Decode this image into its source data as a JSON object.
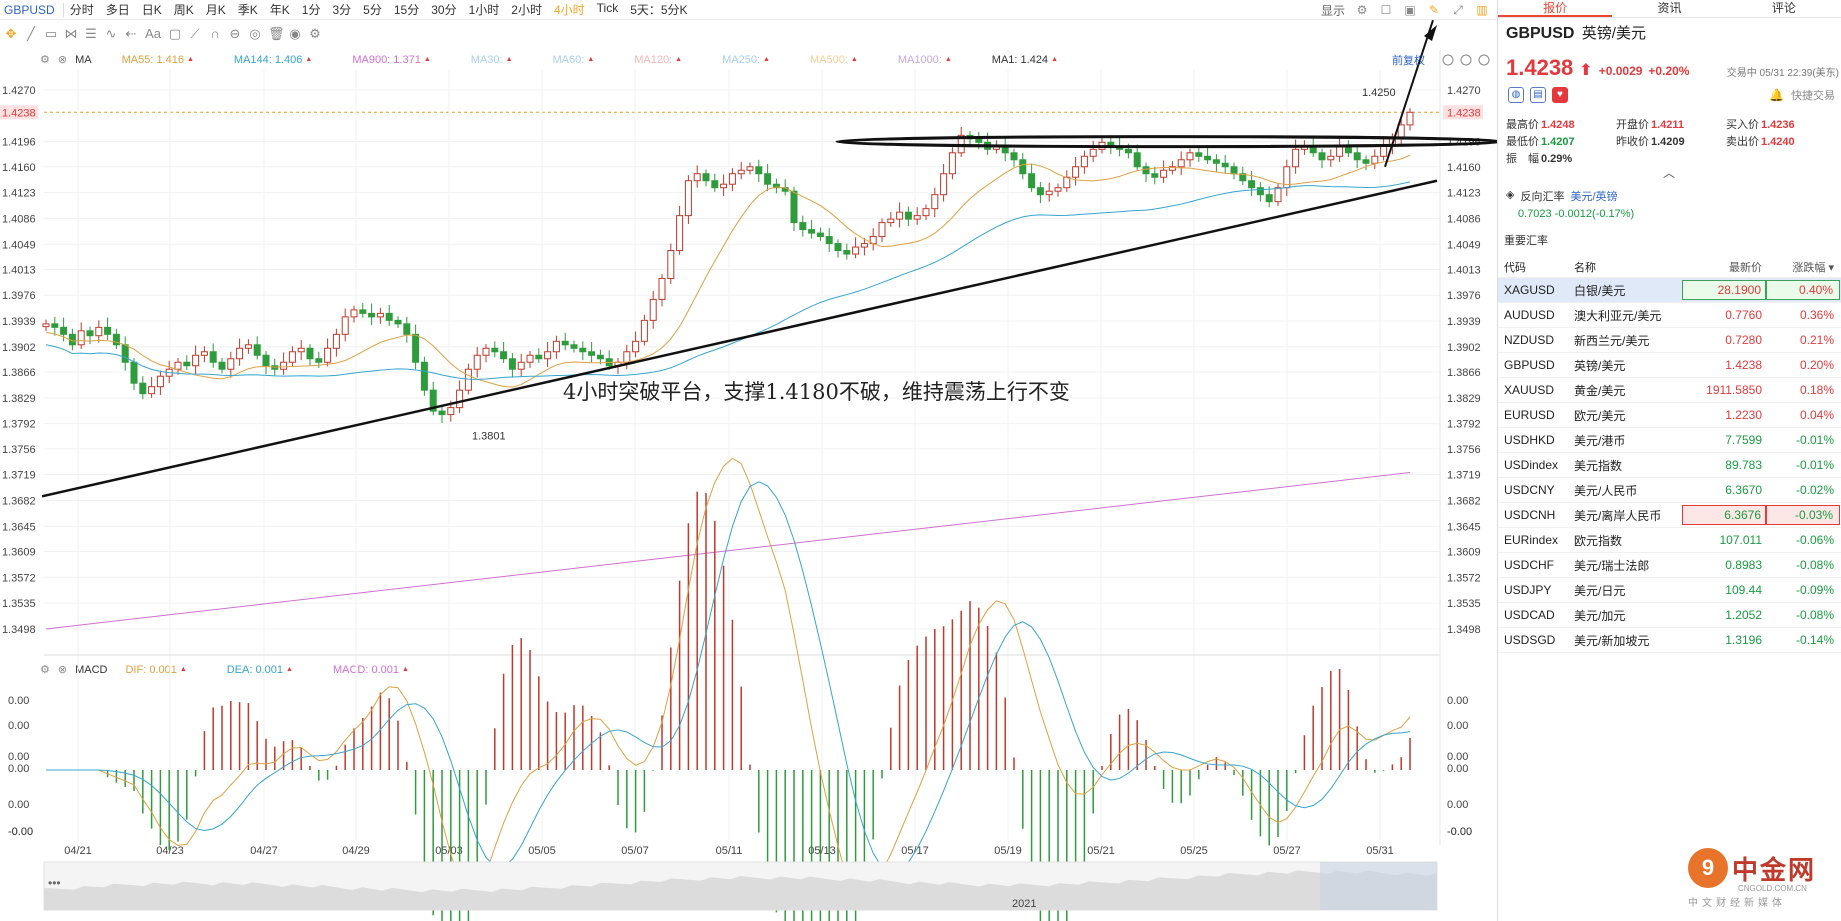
{
  "symbol": "GBPUSD",
  "periods": [
    "分时",
    "多日",
    "日K",
    "周K",
    "月K",
    "季K",
    "年K",
    "1分",
    "3分",
    "5分",
    "15分",
    "30分",
    "1小时",
    "2小时",
    "4小时",
    "Tick",
    "5天：5分K"
  ],
  "active_period": "4小时",
  "top_right": {
    "display_label": "显示"
  },
  "ma_legend": [
    {
      "text": "MA",
      "color": "#333333"
    },
    {
      "text": "MA55: 1.416",
      "color": "#e0a040"
    },
    {
      "text": "MA144: 1.406",
      "color": "#35a5d0"
    },
    {
      "text": "MA900: 1.371",
      "color": "#d070d0"
    },
    {
      "text": "MA30:",
      "color": "#a6d0ee"
    },
    {
      "text": "MA60:",
      "color": "#a6d0ee"
    },
    {
      "text": "MA120:",
      "color": "#f3b6b6"
    },
    {
      "text": "MA250:",
      "color": "#a6d0ee"
    },
    {
      "text": "MA500:",
      "color": "#f3cf9a"
    },
    {
      "text": "MA1000:",
      "color": "#c8a6e8"
    },
    {
      "text": "MA1: 1.424",
      "color": "#333333"
    }
  ],
  "fuquan_label": "前复权",
  "macd_legend": [
    {
      "text": "MACD",
      "color": "#333333"
    },
    {
      "text": "DIF: 0.001",
      "color": "#e0a040"
    },
    {
      "text": "DEA: 0.001",
      "color": "#35a5d0"
    },
    {
      "text": "MACD: 0.001",
      "color": "#d070d0"
    }
  ],
  "annotation": "4小时突破平台，支撑1.4180不破，维持震荡上行不变",
  "chart_data": {
    "type": "candlestick",
    "y_ticks": [
      "1.4270",
      "1.4238",
      "1.4196",
      "1.4160",
      "1.4123",
      "1.4086",
      "1.4049",
      "1.4013",
      "1.3976",
      "1.3939",
      "1.3902",
      "1.3866",
      "1.3829",
      "1.3792",
      "1.3756",
      "1.3719",
      "1.3682",
      "1.3645",
      "1.3609",
      "1.3572",
      "1.3535",
      "1.3498"
    ],
    "current_price": "1.4238",
    "high_label": "1.4250",
    "low_label": "1.3801",
    "x_ticks": [
      "04/21",
      "04/23",
      "04/27",
      "04/29",
      "05/03",
      "05/05",
      "05/07",
      "05/11",
      "05/13",
      "05/17",
      "05/19",
      "05/21",
      "05/25",
      "05/27",
      "05/31"
    ],
    "navigator_label": "2021",
    "macd_y_ticks": [
      "0.00",
      "0.00",
      "0.00",
      "0.00",
      "0.00",
      "-0.00",
      "-0.00"
    ],
    "closes": [
      1.3935,
      1.393,
      1.392,
      1.3905,
      1.3925,
      1.3918,
      1.393,
      1.392,
      1.3905,
      1.388,
      1.385,
      1.3835,
      1.3845,
      1.386,
      1.387,
      1.388,
      1.3875,
      1.389,
      1.3895,
      1.388,
      1.387,
      1.3885,
      1.39,
      1.3905,
      1.389,
      1.3875,
      1.387,
      1.388,
      1.3895,
      1.39,
      1.3885,
      1.388,
      1.39,
      1.392,
      1.3945,
      1.3955,
      1.395,
      1.3945,
      1.395,
      1.394,
      1.3935,
      1.392,
      1.388,
      1.384,
      1.381,
      1.3805,
      1.3815,
      1.384,
      1.387,
      1.389,
      1.39,
      1.3895,
      1.3885,
      1.387,
      1.388,
      1.389,
      1.3885,
      1.3895,
      1.391,
      1.3905,
      1.39,
      1.3895,
      1.389,
      1.3885,
      1.3875,
      1.388,
      1.3895,
      1.391,
      1.394,
      1.397,
      1.4,
      1.404,
      1.409,
      1.414,
      1.415,
      1.414,
      1.413,
      1.4135,
      1.415,
      1.4155,
      1.416,
      1.415,
      1.4135,
      1.413,
      1.4125,
      1.408,
      1.407,
      1.4065,
      1.406,
      1.405,
      1.404,
      1.4035,
      1.4045,
      1.405,
      1.406,
      1.408,
      1.4085,
      1.4095,
      1.4085,
      1.409,
      1.41,
      1.412,
      1.415,
      1.418,
      1.4205,
      1.42,
      1.4195,
      1.4185,
      1.419,
      1.418,
      1.417,
      1.415,
      1.413,
      1.412,
      1.4125,
      1.413,
      1.4145,
      1.416,
      1.4175,
      1.4185,
      1.4195,
      1.419,
      1.4185,
      1.418,
      1.416,
      1.415,
      1.4145,
      1.4155,
      1.416,
      1.417,
      1.418,
      1.4175,
      1.417,
      1.4165,
      1.416,
      1.415,
      1.414,
      1.413,
      1.412,
      1.411,
      1.413,
      1.416,
      1.4185,
      1.419,
      1.418,
      1.417,
      1.4175,
      1.419,
      1.418,
      1.417,
      1.4165,
      1.4175,
      1.419,
      1.42,
      1.422,
      1.4238
    ]
  },
  "panel": {
    "tabs": [
      "报价",
      "资讯",
      "评论"
    ],
    "code": "GBPUSD",
    "name": "英镑/美元",
    "price": "1.4238",
    "arrow": "⬆",
    "change": "+0.0029",
    "change_pct": "+0.20%",
    "status": "交易中 05/31 22:39(美东)",
    "quick_trade": "快捷交易",
    "quote": [
      [
        {
          "label": "最高价",
          "value": "1.4248",
          "cls": "red"
        },
        {
          "label": "开盘价",
          "value": "1.4211",
          "cls": "red"
        },
        {
          "label": "买入价",
          "value": "1.4236",
          "cls": "red"
        }
      ],
      [
        {
          "label": "最低价",
          "value": "1.4207",
          "cls": "green"
        },
        {
          "label": "昨收价",
          "value": "1.4209",
          "cls": ""
        },
        {
          "label": "卖出价",
          "value": "1.4240",
          "cls": "red"
        }
      ],
      [
        {
          "label": "振　幅",
          "value": "0.29%",
          "cls": ""
        }
      ]
    ],
    "reverse_label": "反向汇率",
    "reverse_pair": "美元/英镑",
    "reverse_value": "0.7023  -0.0012(-0.17%)",
    "section_title": "重要汇率",
    "table_head": [
      "代码",
      "名称",
      "最新价",
      "涨跌幅"
    ],
    "rows": [
      {
        "code": "XAGUSD",
        "name": "白银/美元",
        "price": "28.1900",
        "pct": "0.40%",
        "dir": "up",
        "sel": true,
        "box": "g"
      },
      {
        "code": "AUDUSD",
        "name": "澳大利亚元/美元",
        "price": "0.7760",
        "pct": "0.36%",
        "dir": "up"
      },
      {
        "code": "NZDUSD",
        "name": "新西兰元/美元",
        "price": "0.7280",
        "pct": "0.21%",
        "dir": "up"
      },
      {
        "code": "GBPUSD",
        "name": "英镑/美元",
        "price": "1.4238",
        "pct": "0.20%",
        "dir": "up"
      },
      {
        "code": "XAUUSD",
        "name": "黄金/美元",
        "price": "1911.5850",
        "pct": "0.18%",
        "dir": "up"
      },
      {
        "code": "EURUSD",
        "name": "欧元/美元",
        "price": "1.2230",
        "pct": "0.04%",
        "dir": "up"
      },
      {
        "code": "USDHKD",
        "name": "美元/港币",
        "price": "7.7599",
        "pct": "-0.01%",
        "dir": "down"
      },
      {
        "code": "USDindex",
        "name": "美元指数",
        "price": "89.783",
        "pct": "-0.01%",
        "dir": "down"
      },
      {
        "code": "USDCNY",
        "name": "美元/人民币",
        "price": "6.3670",
        "pct": "-0.02%",
        "dir": "down"
      },
      {
        "code": "USDCNH",
        "name": "美元/离岸人民币",
        "price": "6.3676",
        "pct": "-0.03%",
        "dir": "down",
        "box": "r"
      },
      {
        "code": "EURindex",
        "name": "欧元指数",
        "price": "107.011",
        "pct": "-0.06%",
        "dir": "down"
      },
      {
        "code": "USDCHF",
        "name": "美元/瑞士法郎",
        "price": "0.8983",
        "pct": "-0.08%",
        "dir": "down"
      },
      {
        "code": "USDJPY",
        "name": "美元/日元",
        "price": "109.44",
        "pct": "-0.09%",
        "dir": "down"
      },
      {
        "code": "USDCAD",
        "name": "美元/加元",
        "price": "1.2052",
        "pct": "-0.08%",
        "dir": "down"
      },
      {
        "code": "USDSGD",
        "name": "美元/新加坡元",
        "price": "1.3196",
        "pct": "-0.14%",
        "dir": "down"
      }
    ]
  },
  "watermark": {
    "logo": "9",
    "brand": "中金网",
    "sub": "中文财经新媒体",
    "url": "CNGOLD.COM.CN"
  }
}
